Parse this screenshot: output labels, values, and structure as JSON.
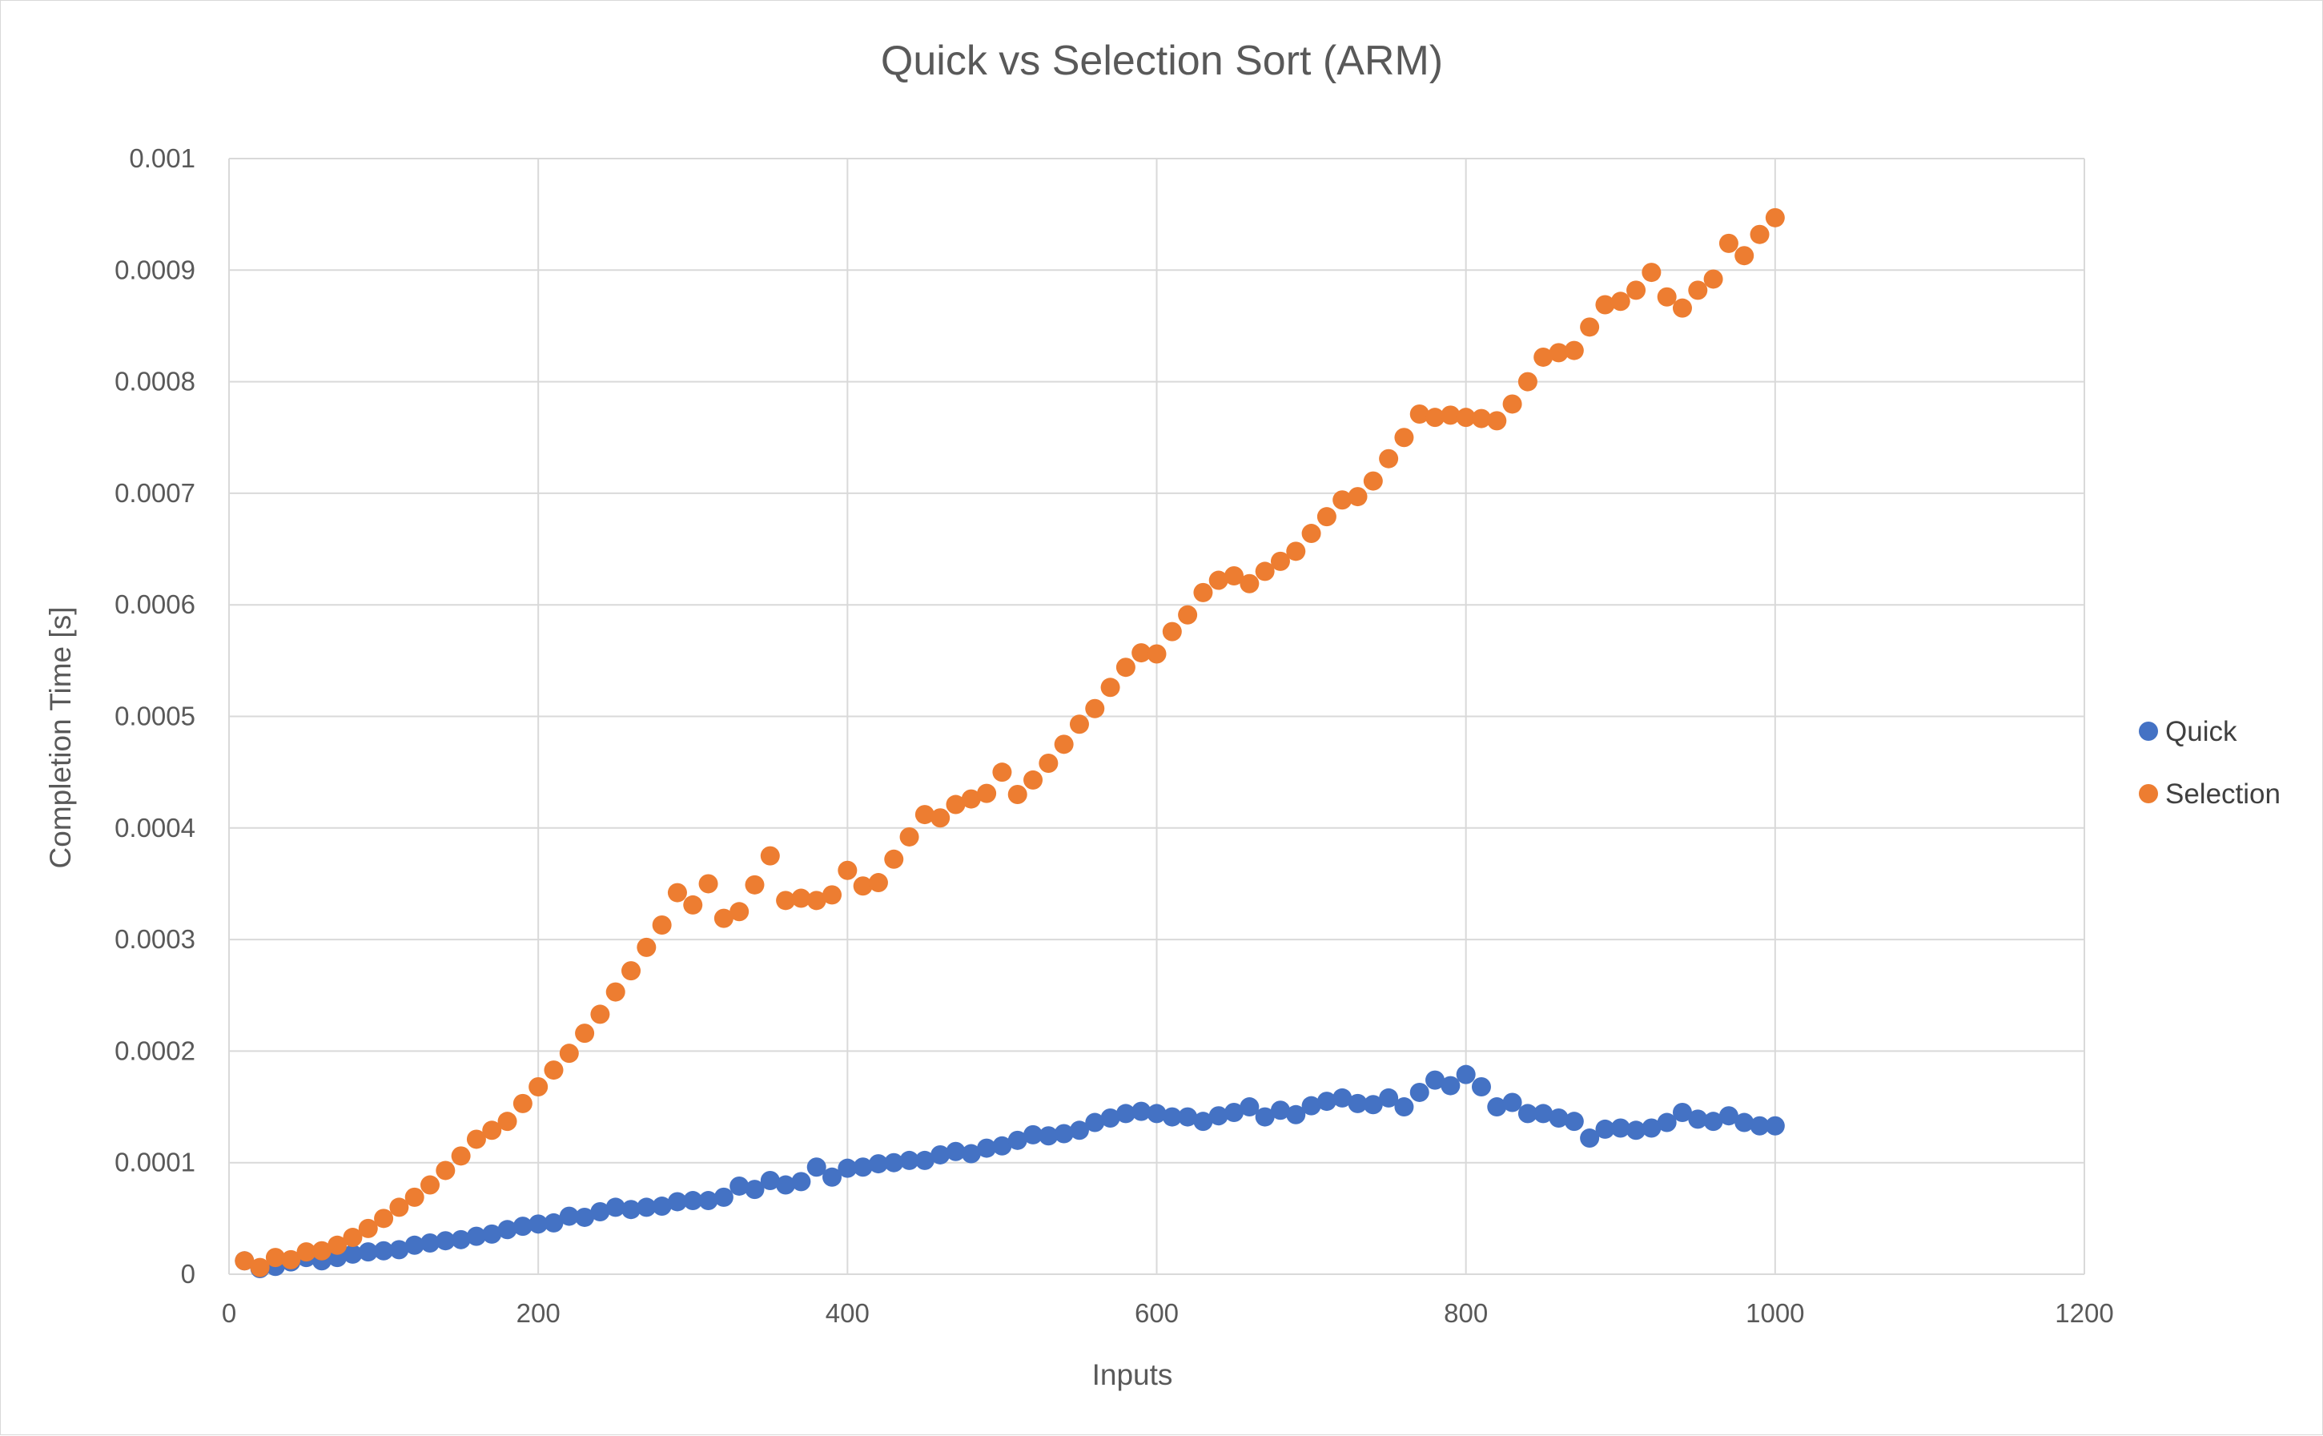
{
  "chart_data": {
    "type": "scatter",
    "title": "Quick vs Selection Sort (ARM)",
    "xlabel": "Inputs",
    "ylabel": "Completion Time [s]",
    "xlim": [
      0,
      1200
    ],
    "ylim": [
      0,
      0.001
    ],
    "x_ticks": [
      "0",
      "200",
      "400",
      "600",
      "800",
      "1000",
      "1200"
    ],
    "y_ticks": [
      "0",
      "0.0001",
      "0.0002",
      "0.0003",
      "0.0004",
      "0.0005",
      "0.0006",
      "0.0007",
      "0.0008",
      "0.0009",
      "0.001"
    ],
    "grid": true,
    "legend_position": "right",
    "x": [
      10,
      20,
      30,
      40,
      50,
      60,
      70,
      80,
      90,
      100,
      110,
      120,
      130,
      140,
      150,
      160,
      170,
      180,
      190,
      200,
      210,
      220,
      230,
      240,
      250,
      260,
      270,
      280,
      290,
      300,
      310,
      320,
      330,
      340,
      350,
      360,
      370,
      380,
      390,
      400,
      410,
      420,
      430,
      440,
      450,
      460,
      470,
      480,
      490,
      500,
      510,
      520,
      530,
      540,
      550,
      560,
      570,
      580,
      590,
      600,
      610,
      620,
      630,
      640,
      650,
      660,
      670,
      680,
      690,
      700,
      710,
      720,
      730,
      740,
      750,
      760,
      770,
      780,
      790,
      800,
      810,
      820,
      830,
      840,
      850,
      860,
      870,
      880,
      890,
      900,
      910,
      920,
      930,
      940,
      950,
      960,
      970,
      980,
      990,
      1000
    ],
    "series": [
      {
        "name": "Quick",
        "color": "#4472C4",
        "values": [
          1.2e-05,
          5e-06,
          7e-06,
          1.1e-05,
          1.5e-05,
          1.2e-05,
          1.5e-05,
          1.8e-05,
          2e-05,
          2.1e-05,
          2.2e-05,
          2.6e-05,
          2.8e-05,
          3e-05,
          3.1e-05,
          3.4e-05,
          3.6e-05,
          4e-05,
          4.3e-05,
          4.5e-05,
          4.6e-05,
          5.2e-05,
          5.1e-05,
          5.6e-05,
          6e-05,
          5.8e-05,
          6e-05,
          6.1e-05,
          6.5e-05,
          6.6e-05,
          6.6e-05,
          6.9e-05,
          7.9e-05,
          7.6e-05,
          8.4e-05,
          8e-05,
          8.3e-05,
          9.6e-05,
          8.7e-05,
          9.5e-05,
          9.6e-05,
          9.9e-05,
          0.0001,
          0.000102,
          0.000102,
          0.000107,
          0.00011,
          0.000108,
          0.000113,
          0.000115,
          0.00012,
          0.000125,
          0.000124,
          0.000126,
          0.000129,
          0.000136,
          0.00014,
          0.000144,
          0.000146,
          0.000144,
          0.000141,
          0.000141,
          0.000137,
          0.000142,
          0.000145,
          0.00015,
          0.000141,
          0.000147,
          0.000143,
          0.000151,
          0.000155,
          0.000158,
          0.000153,
          0.000152,
          0.000158,
          0.00015,
          0.000163,
          0.000174,
          0.000169,
          0.000179,
          0.000168,
          0.00015,
          0.000154,
          0.000144,
          0.000144,
          0.00014,
          0.000137,
          0.000122,
          0.00013,
          0.000131,
          0.000129,
          0.000131,
          0.000136,
          0.000145,
          0.000139,
          0.000137,
          0.000142,
          0.000136,
          0.000133,
          0.000133
        ]
      },
      {
        "name": "Selection",
        "color": "#ED7D31",
        "values": [
          1.2e-05,
          6e-06,
          1.5e-05,
          1.3e-05,
          2e-05,
          2.1e-05,
          2.6e-05,
          3.3e-05,
          4.1e-05,
          5e-05,
          6e-05,
          6.9e-05,
          8e-05,
          9.3e-05,
          0.000106,
          0.000121,
          0.000129,
          0.000137,
          0.000153,
          0.000168,
          0.000183,
          0.000198,
          0.000216,
          0.000233,
          0.000253,
          0.000272,
          0.000293,
          0.000313,
          0.000342,
          0.000331,
          0.00035,
          0.000319,
          0.000325,
          0.000349,
          0.000375,
          0.000335,
          0.000337,
          0.000335,
          0.00034,
          0.000362,
          0.000348,
          0.000351,
          0.000372,
          0.000392,
          0.000412,
          0.000409,
          0.000421,
          0.000426,
          0.000431,
          0.00045,
          0.00043,
          0.000443,
          0.000458,
          0.000475,
          0.000493,
          0.000507,
          0.000526,
          0.000544,
          0.000557,
          0.000556,
          0.000576,
          0.000591,
          0.000611,
          0.000622,
          0.000626,
          0.000619,
          0.00063,
          0.000639,
          0.000648,
          0.000664,
          0.000679,
          0.000694,
          0.000697,
          0.000711,
          0.000731,
          0.00075,
          0.000771,
          0.000768,
          0.00077,
          0.000768,
          0.000767,
          0.000765,
          0.00078,
          0.0008,
          0.000822,
          0.000826,
          0.000828,
          0.000849,
          0.000869,
          0.000872,
          0.000882,
          0.000898,
          0.000876,
          0.000866,
          0.000882,
          0.000892,
          0.000924,
          0.000913,
          0.000932,
          0.000947
        ]
      }
    ]
  }
}
